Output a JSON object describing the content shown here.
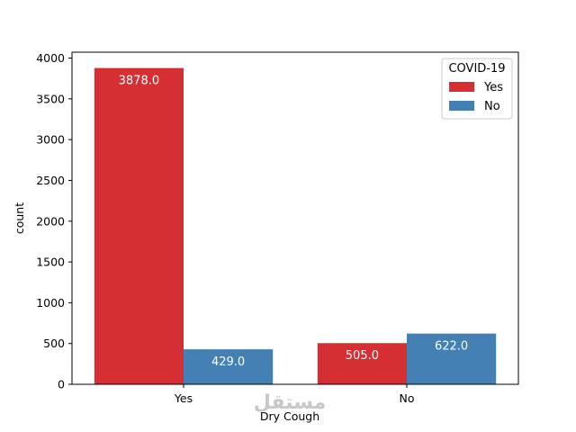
{
  "chart_data": {
    "type": "bar",
    "categories": [
      "Yes",
      "No"
    ],
    "series": [
      {
        "name": "Yes",
        "values": [
          3878.0,
          505.0
        ],
        "color": "#d62f33",
        "labels": [
          "3878.0",
          "505.0"
        ]
      },
      {
        "name": "No",
        "values": [
          429.0,
          622.0
        ],
        "color": "#4480b4",
        "labels": [
          "429.0",
          "622.0"
        ]
      }
    ],
    "title": "",
    "xlabel": "Dry Cough",
    "ylabel": "count",
    "ylim": [
      0,
      4072
    ],
    "yticks": [
      0,
      500,
      1000,
      1500,
      2000,
      2500,
      3000,
      3500,
      4000
    ],
    "legend": {
      "title": "COVID-19",
      "placement": "top-right"
    },
    "grid": false
  },
  "watermark": {
    "text": "مستقل",
    "icon": "watermark-logo-icon"
  }
}
